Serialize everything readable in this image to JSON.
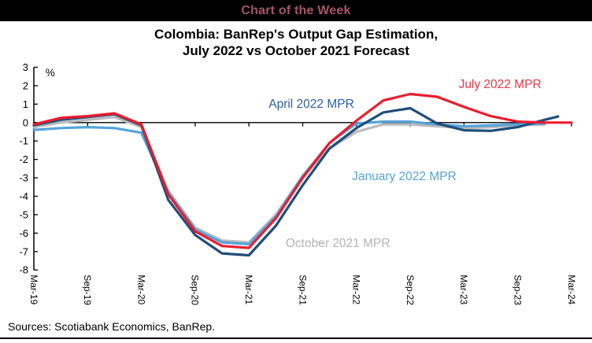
{
  "banner": {
    "text": "Chart of the Week",
    "bg": "#000000",
    "color": "#A5556A"
  },
  "title": {
    "line1": "Colombia: BanRep's Output Gap Estimation,",
    "line2": "July 2022 vs October 2021 Forecast"
  },
  "source": {
    "text": "Sources: Scotiabank Economics, BanRep."
  },
  "chart_data": {
    "type": "line",
    "title": "Colombia: BanRep's Output Gap Estimation, July 2022 vs October 2021 Forecast",
    "ylabel": "%",
    "unit_label": "%",
    "unit_label_pos": {
      "x": 1.3,
      "y": 2.5
    },
    "ylim": [
      -8,
      3
    ],
    "y_ticks": [
      3,
      2,
      1,
      0,
      -1,
      -2,
      -3,
      -4,
      -5,
      -6,
      -7,
      -8
    ],
    "x_axis_note": "x in months since Mar-2019, quarterly points",
    "x_tick_months": [
      0,
      6,
      12,
      18,
      24,
      30,
      36,
      42,
      48,
      54,
      60
    ],
    "x_tick_labels": [
      "Mar-19",
      "Sep-19",
      "Mar-20",
      "Sep-20",
      "Mar-21",
      "Sep-21",
      "Mar-22",
      "Sep-22",
      "Mar-23",
      "Sep-23",
      "Mar-24"
    ],
    "grid": false,
    "legend_position": "inline-labels",
    "series": [
      {
        "name": "October 2021 MPR",
        "color": "#B9BABC",
        "label_color": "#B4B4B4",
        "label_pos": {
          "x": 28.1,
          "y": -6.76
        },
        "x": [
          0,
          3,
          6,
          9,
          12,
          15,
          18,
          21,
          24,
          27,
          30,
          33,
          36,
          39,
          42,
          45,
          48,
          51,
          54,
          57
        ],
        "y": [
          -0.25,
          0.0,
          0.15,
          0.3,
          -0.25,
          -3.7,
          -5.7,
          -6.4,
          -6.5,
          -5.0,
          -2.9,
          -1.4,
          -0.5,
          -0.1,
          -0.1,
          -0.2,
          -0.3,
          -0.25,
          -0.15,
          -0.1
        ]
      },
      {
        "name": "January 2022 MPR",
        "color": "#54A3DA",
        "label_color": "#53A4DC",
        "label_pos": {
          "x": 35.5,
          "y": -3.13
        },
        "x": [
          0,
          3,
          6,
          9,
          12,
          15,
          18,
          21,
          24,
          27,
          30,
          33,
          36,
          39,
          42,
          45,
          48,
          51,
          54,
          57
        ],
        "y": [
          -0.4,
          -0.3,
          -0.25,
          -0.3,
          -0.55,
          -3.8,
          -5.8,
          -6.5,
          -6.6,
          -5.1,
          -2.9,
          -1.1,
          -0.05,
          0.05,
          0.05,
          -0.1,
          -0.2,
          -0.15,
          -0.1,
          -0.05
        ]
      },
      {
        "name": "April 2022 MPR",
        "color": "#1F4E79",
        "label_color": "#2D5DA9",
        "label_pos": {
          "x": 26.2,
          "y": 0.8
        },
        "x": [
          0,
          3,
          6,
          9,
          12,
          15,
          18,
          21,
          24,
          27,
          30,
          33,
          36,
          39,
          42,
          45,
          48,
          51,
          54,
          57,
          58.5
        ],
        "y": [
          -0.15,
          0.15,
          0.3,
          0.45,
          -0.15,
          -4.2,
          -6.1,
          -7.1,
          -7.2,
          -5.6,
          -3.4,
          -1.4,
          -0.3,
          0.55,
          0.78,
          -0.05,
          -0.42,
          -0.45,
          -0.25,
          0.15,
          0.33
        ]
      },
      {
        "name": "July 2022 MPR",
        "color": "#EB1C2D",
        "label_color": "#F23441",
        "label_pos": {
          "x": 47.4,
          "y": 1.87
        },
        "x": [
          0,
          3,
          6,
          9,
          12,
          15,
          18,
          21,
          24,
          27,
          30,
          33,
          36,
          39,
          42,
          45,
          48,
          51,
          54,
          57,
          60
        ],
        "y": [
          -0.1,
          0.25,
          0.35,
          0.5,
          -0.1,
          -3.9,
          -5.9,
          -6.7,
          -6.8,
          -5.2,
          -3.0,
          -1.1,
          0.1,
          1.2,
          1.55,
          1.4,
          0.85,
          0.35,
          0.05,
          0.0,
          0.0
        ]
      }
    ]
  }
}
